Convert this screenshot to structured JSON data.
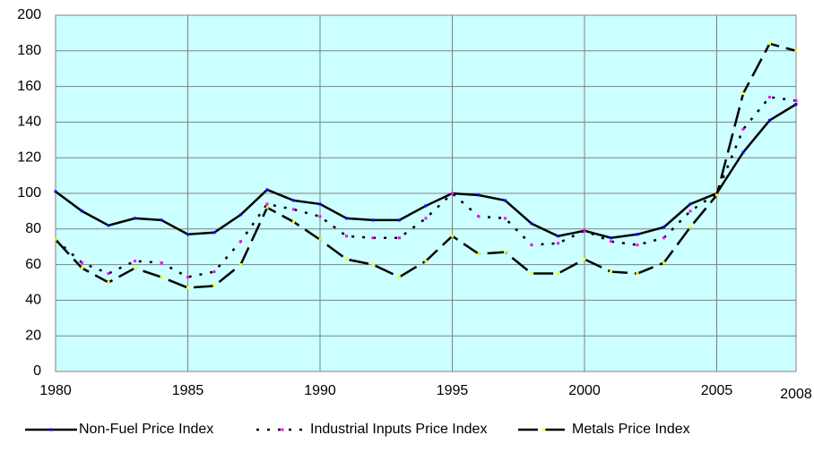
{
  "chart_data": {
    "type": "line",
    "x": [
      1980,
      1981,
      1982,
      1983,
      1984,
      1985,
      1986,
      1987,
      1988,
      1989,
      1990,
      1991,
      1992,
      1993,
      1994,
      1995,
      1996,
      1997,
      1998,
      1999,
      2000,
      2001,
      2002,
      2003,
      2004,
      2005,
      2006,
      2007,
      2008
    ],
    "series": [
      {
        "name": "Non-Fuel Price Index",
        "color": "#000000",
        "marker_color": "#0000ff",
        "dash": "solid",
        "values": [
          101,
          90,
          82,
          86,
          85,
          77,
          78,
          88,
          102,
          96,
          94,
          86,
          85,
          85,
          93,
          100,
          99,
          96,
          83,
          76,
          79,
          75,
          77,
          81,
          94,
          100,
          123,
          141,
          150
        ]
      },
      {
        "name": "Industrial Inputs Price Index",
        "color": "#000000",
        "marker_color": "#ff00ff",
        "dash": "dotted",
        "values": [
          74,
          61,
          55,
          62,
          61,
          53,
          56,
          73,
          94,
          91,
          87,
          76,
          75,
          75,
          86,
          100,
          87,
          86,
          71,
          72,
          79,
          73,
          71,
          75,
          90,
          100,
          136,
          154,
          152
        ]
      },
      {
        "name": "Metals Price Index",
        "color": "#000000",
        "marker_color": "#ffff00",
        "dash": "dashed",
        "values": [
          74,
          58,
          50,
          58,
          53,
          47,
          48,
          60,
          92,
          84,
          74,
          63,
          60,
          53,
          62,
          76,
          66,
          67,
          55,
          55,
          63,
          56,
          55,
          61,
          81,
          99,
          156,
          184,
          180
        ]
      }
    ],
    "xlim": [
      1980,
      2008
    ],
    "xticks": [
      1980,
      1985,
      1990,
      1995,
      2000,
      2005,
      2008
    ],
    "ylim": [
      0,
      200
    ],
    "yticks": [
      0,
      20,
      40,
      60,
      80,
      100,
      120,
      140,
      160,
      180,
      200
    ],
    "grid": true,
    "background": "#ccffff",
    "legend": "bottom"
  }
}
